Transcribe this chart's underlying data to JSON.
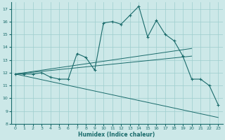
{
  "xlabel": "Humidex (Indice chaleur)",
  "xlim": [
    -0.5,
    23.5
  ],
  "ylim": [
    8,
    17.5
  ],
  "yticks": [
    8,
    9,
    10,
    11,
    12,
    13,
    14,
    15,
    16,
    17
  ],
  "xticks": [
    0,
    1,
    2,
    3,
    4,
    5,
    6,
    7,
    8,
    9,
    10,
    11,
    12,
    13,
    14,
    15,
    16,
    17,
    18,
    19,
    20,
    21,
    22,
    23
  ],
  "bg_color": "#cce8e8",
  "grid_color": "#9ecece",
  "line_color": "#1a6b6b",
  "line1_x": [
    0,
    1,
    2,
    3,
    4,
    5,
    6,
    7,
    8,
    9,
    10,
    11,
    12,
    13,
    14,
    15,
    16,
    17,
    18,
    19,
    20,
    21,
    22,
    23
  ],
  "line1_y": [
    11.9,
    11.9,
    11.9,
    12.0,
    11.65,
    11.5,
    11.5,
    13.5,
    13.2,
    12.2,
    15.9,
    16.0,
    15.8,
    16.5,
    17.2,
    14.8,
    16.1,
    15.0,
    14.5,
    13.3,
    11.5,
    11.5,
    11.0,
    9.5
  ],
  "line2_x": [
    0,
    20
  ],
  "line2_y": [
    11.9,
    13.3
  ],
  "line3_x": [
    0,
    20
  ],
  "line3_y": [
    11.9,
    13.9
  ],
  "line4_x": [
    0,
    23
  ],
  "line4_y": [
    11.9,
    8.5
  ]
}
